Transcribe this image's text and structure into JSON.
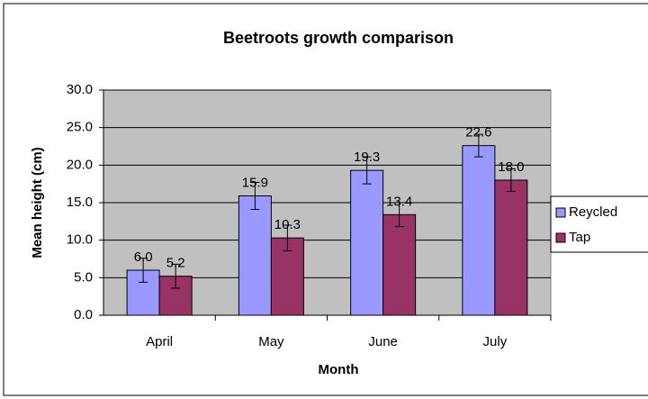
{
  "chart_data": {
    "type": "bar",
    "title": "Beetroots growth comparison",
    "x_label": "Month",
    "y_label": "Mean height (cm)",
    "categories": [
      "April",
      "May",
      "June",
      "July"
    ],
    "series": [
      {
        "name": "Reycled",
        "color": "#9999ff",
        "values": [
          6.0,
          15.9,
          19.3,
          22.6
        ],
        "value_labels": [
          "6.0",
          "15.9",
          "19.3",
          "22.6"
        ],
        "errors": [
          1.6,
          1.8,
          1.8,
          1.5
        ]
      },
      {
        "name": "Tap",
        "color": "#993366",
        "values": [
          5.2,
          10.3,
          13.4,
          18.0
        ],
        "value_labels": [
          "5.2",
          "10.3",
          "13.4",
          "18.0"
        ],
        "errors": [
          1.6,
          1.7,
          1.6,
          1.5
        ]
      }
    ],
    "ylim": [
      0,
      30
    ],
    "yticks": [
      {
        "value": 0,
        "label": "0.0"
      },
      {
        "value": 5,
        "label": "5.0"
      },
      {
        "value": 10,
        "label": "10.0"
      },
      {
        "value": 15,
        "label": "15.0"
      },
      {
        "value": 20,
        "label": "20.0"
      },
      {
        "value": 25,
        "label": "25.0"
      },
      {
        "value": 30,
        "label": "30.0"
      }
    ],
    "grid": true,
    "legend": "right"
  }
}
